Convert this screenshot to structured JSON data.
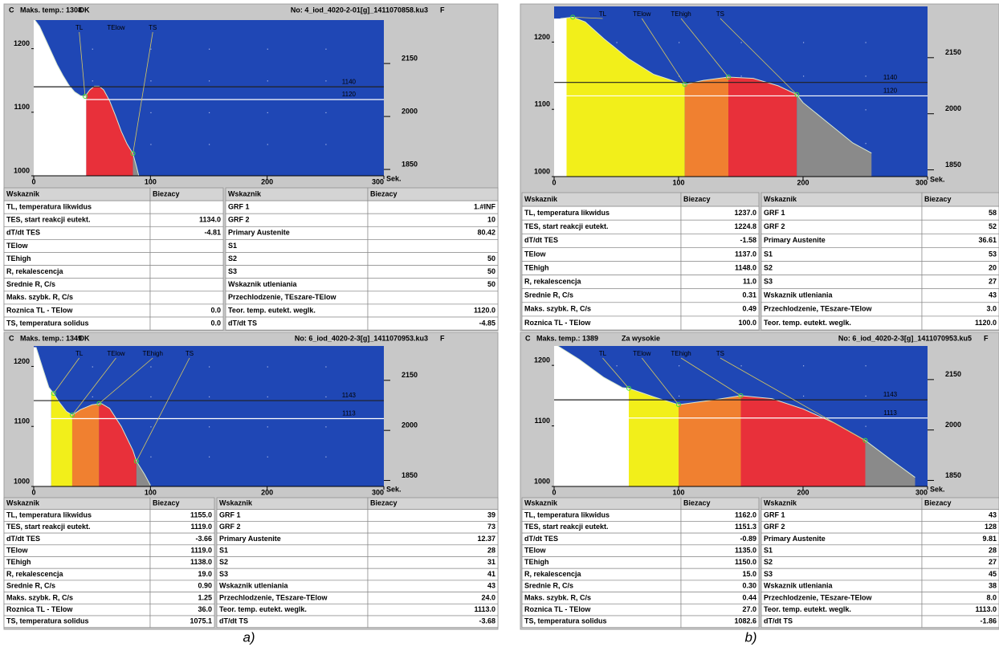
{
  "chart_data": [
    {
      "type": "line",
      "background": "#1f47b5",
      "color": "#d8e8d0",
      "x_unit": "Sek.",
      "x": [
        1,
        5,
        10,
        15,
        20,
        25,
        30,
        35,
        40,
        44,
        48,
        52,
        56,
        60,
        65,
        70,
        75,
        80,
        85,
        88,
        90
      ],
      "values": [
        1245,
        1235,
        1215,
        1195,
        1175,
        1158,
        1143,
        1132,
        1126,
        1125,
        1135,
        1141,
        1141,
        1135,
        1118,
        1095,
        1070,
        1050,
        1035,
        1015,
        1000
      ],
      "regions": [
        {
          "color": "#ffffff",
          "x": [
            0,
            45
          ]
        },
        {
          "color": "#e8303a",
          "x": [
            45,
            85
          ]
        },
        {
          "color": "#8a8a8a",
          "x": [
            85,
            90
          ]
        }
      ],
      "hlines": [
        1140,
        1120
      ],
      "annotations": [
        {
          "text": "TL",
          "x": 44,
          "y": 1125
        },
        {
          "text": "TElow",
          "x": null,
          "y": null
        },
        {
          "text": "TS",
          "x": 85,
          "y": 1035
        }
      ],
      "xlim": [
        0,
        300
      ],
      "xticks": [
        0,
        100,
        200,
        300
      ],
      "ylim": [
        1000,
        1245
      ],
      "yticks": [
        1000,
        1100,
        1200
      ],
      "y2lim": [
        1832,
        2273
      ],
      "y2ticks": [
        1850,
        2000,
        2150
      ],
      "grid": true
    },
    {
      "type": "line",
      "background": "#1f47b5",
      "color": "#d8e8d0",
      "x_unit": "Sek.",
      "x": [
        5,
        15,
        25,
        40,
        60,
        80,
        100,
        105,
        120,
        140,
        160,
        180,
        195,
        200,
        220,
        240,
        255
      ],
      "values": [
        1235,
        1237,
        1230,
        1205,
        1175,
        1152,
        1140,
        1137,
        1143,
        1148,
        1146,
        1135,
        1122,
        1110,
        1080,
        1050,
        1035
      ],
      "regions": [
        {
          "color": "#ffffff",
          "x": [
            0,
            10
          ]
        },
        {
          "color": "#f2ef1a",
          "x": [
            10,
            105
          ]
        },
        {
          "color": "#f08030",
          "x": [
            105,
            140
          ]
        },
        {
          "color": "#e8303a",
          "x": [
            140,
            195
          ]
        },
        {
          "color": "#8a8a8a",
          "x": [
            195,
            255
          ]
        }
      ],
      "hlines": [
        1140,
        1120
      ],
      "annotations": [
        {
          "text": "TL",
          "x": 15,
          "y": 1237
        },
        {
          "text": "TElow",
          "x": 105,
          "y": 1137
        },
        {
          "text": "TEhigh",
          "x": 140,
          "y": 1148
        },
        {
          "text": "TS",
          "x": 195,
          "y": 1122
        }
      ],
      "xlim": [
        0,
        300
      ],
      "xticks": [
        0,
        100,
        200,
        300
      ],
      "ylim": [
        1000,
        1253
      ],
      "yticks": [
        1000,
        1100,
        1200
      ],
      "y2lim": [
        1832,
        2287
      ],
      "y2ticks": [
        1850,
        2000,
        2150
      ],
      "grid": true
    },
    {
      "type": "line",
      "background": "#1f47b5",
      "color": "#d8e8d0",
      "x_unit": "Sek.",
      "x": [
        2,
        8,
        13,
        17,
        22,
        28,
        33,
        40,
        50,
        58,
        65,
        75,
        85,
        88,
        95,
        100
      ],
      "values": [
        1232,
        1195,
        1165,
        1155,
        1140,
        1125,
        1119,
        1128,
        1136,
        1138,
        1130,
        1100,
        1060,
        1042,
        1020,
        1002
      ],
      "regions": [
        {
          "color": "#ffffff",
          "x": [
            0,
            15
          ]
        },
        {
          "color": "#f2ef1a",
          "x": [
            15,
            33
          ]
        },
        {
          "color": "#f08030",
          "x": [
            33,
            56
          ]
        },
        {
          "color": "#e8303a",
          "x": [
            56,
            88
          ]
        },
        {
          "color": "#8a8a8a",
          "x": [
            88,
            100
          ]
        }
      ],
      "hlines": [
        1143,
        1113
      ],
      "annotations": [
        {
          "text": "TL",
          "x": 17,
          "y": 1155
        },
        {
          "text": "TElow",
          "x": 33,
          "y": 1119
        },
        {
          "text": "TEhigh",
          "x": 56,
          "y": 1138
        },
        {
          "text": "TS",
          "x": 88,
          "y": 1042
        }
      ],
      "xlim": [
        0,
        300
      ],
      "xticks": [
        0,
        100,
        200,
        300
      ],
      "ylim": [
        1000,
        1234
      ],
      "yticks": [
        1000,
        1100,
        1200
      ],
      "y2lim": [
        1832,
        2253
      ],
      "y2ticks": [
        1850,
        2000,
        2150
      ],
      "grid": true
    },
    {
      "type": "line",
      "background": "#1f47b5",
      "color": "#d8e8d0",
      "x_unit": "Sek.",
      "x": [
        3,
        20,
        40,
        55,
        60,
        80,
        100,
        125,
        150,
        175,
        200,
        225,
        250,
        270,
        290
      ],
      "values": [
        1232,
        1210,
        1180,
        1163,
        1162,
        1148,
        1135,
        1142,
        1150,
        1145,
        1128,
        1105,
        1076,
        1045,
        1015
      ],
      "regions": [
        {
          "color": "#ffffff",
          "x": [
            0,
            60
          ]
        },
        {
          "color": "#f2ef1a",
          "x": [
            60,
            100
          ]
        },
        {
          "color": "#f08030",
          "x": [
            100,
            150
          ]
        },
        {
          "color": "#e8303a",
          "x": [
            150,
            250
          ]
        },
        {
          "color": "#8a8a8a",
          "x": [
            250,
            290
          ]
        }
      ],
      "hlines": [
        1143,
        1113
      ],
      "annotations": [
        {
          "text": "TL",
          "x": 60,
          "y": 1162
        },
        {
          "text": "TElow",
          "x": 100,
          "y": 1135
        },
        {
          "text": "TEhigh",
          "x": 150,
          "y": 1150
        },
        {
          "text": "TS",
          "x": 250,
          "y": 1076
        }
      ],
      "xlim": [
        0,
        300
      ],
      "xticks": [
        0,
        100,
        200,
        300
      ],
      "ylim": [
        1000,
        1232
      ],
      "yticks": [
        1000,
        1100,
        1200
      ],
      "y2lim": [
        1832,
        2250
      ],
      "y2ticks": [
        1850,
        2000,
        2150
      ],
      "grid": true
    }
  ],
  "panels": [
    {
      "header": {
        "unit_left": "C",
        "max_temp": "Maks. temp.: 1308",
        "status": "OK",
        "file": "No: 4_iod_4020-2-01[g]_1411070858.ku3",
        "unit_right": "F"
      },
      "tables": [
        {
          "columns": [
            "Wskaznik",
            "Biezacy"
          ],
          "rows": [
            [
              "TL, temperatura likwidus",
              null
            ],
            [
              "TES, start reakcji eutekt.",
              "1134.0"
            ],
            [
              "dT/dt TES",
              "-4.81"
            ],
            [
              "TElow",
              null
            ],
            [
              "TEhigh",
              null
            ],
            [
              "R, rekalescencja",
              null
            ],
            [
              "Srednie R, C/s",
              null
            ],
            [
              "Maks. szybk. R, C/s",
              null
            ],
            [
              "Roznica TL - TElow",
              "0.0"
            ],
            [
              "TS, temperatura solidus",
              "0.0"
            ]
          ]
        },
        {
          "columns": [
            "Wskaznik",
            "Biezacy"
          ],
          "rows": [
            [
              "GRF 1",
              "1.#INF"
            ],
            [
              "GRF 2",
              "10"
            ],
            [
              "Primary Austenite",
              "80.42"
            ],
            [
              "S1",
              null
            ],
            [
              "S2",
              "50"
            ],
            [
              "S3",
              "50"
            ],
            [
              "Wskaznik utleniania",
              "50"
            ],
            [
              "Przechlodzenie, TEszare-TElow",
              null
            ],
            [
              "Teor. temp. eutekt. weglk.",
              "1120.0"
            ],
            [
              "dT/dt TS",
              "-4.85"
            ]
          ]
        }
      ]
    },
    {
      "tables": [
        {
          "columns": [
            "Wskaznik",
            "Biezacy"
          ],
          "rows": [
            [
              "TL, temperatura likwidus",
              "1237.0"
            ],
            [
              "TES, start reakcji eutekt.",
              "1224.8"
            ],
            [
              "dT/dt TES",
              "-1.58"
            ],
            [
              "TElow",
              "1137.0"
            ],
            [
              "TEhigh",
              "1148.0"
            ],
            [
              "R, rekalescencja",
              "11.0"
            ],
            [
              "Srednie R, C/s",
              "0.31"
            ],
            [
              "Maks. szybk. R, C/s",
              "0.49"
            ],
            [
              "Roznica TL - TElow",
              "100.0"
            ]
          ]
        },
        {
          "columns": [
            "Wskaznik",
            "Biezacy"
          ],
          "rows": [
            [
              "GRF 1",
              "58"
            ],
            [
              "GRF 2",
              "52"
            ],
            [
              "Primary Austenite",
              "36.61"
            ],
            [
              "S1",
              "53"
            ],
            [
              "S2",
              "20"
            ],
            [
              "S3",
              "27"
            ],
            [
              "Wskaznik utleniania",
              "43"
            ],
            [
              "Przechlodzenie, TEszare-TElow",
              "3.0"
            ],
            [
              "Teor. temp. eutekt. weglk.",
              "1120.0"
            ]
          ]
        }
      ]
    },
    {
      "header": {
        "unit_left": "C",
        "max_temp": "Maks. temp.: 1349",
        "status": "OK",
        "file": "No: 6_iod_4020-2-3[g]_1411070953.ku3",
        "unit_right": "F"
      },
      "tables": [
        {
          "columns": [
            "Wskaznik",
            "Biezacy"
          ],
          "rows": [
            [
              "TL, temperatura likwidus",
              "1155.0"
            ],
            [
              "TES, start reakcji eutekt.",
              "1119.0"
            ],
            [
              "dT/dt TES",
              "-3.66"
            ],
            [
              "TElow",
              "1119.0"
            ],
            [
              "TEhigh",
              "1138.0"
            ],
            [
              "R, rekalescencja",
              "19.0"
            ],
            [
              "Srednie R, C/s",
              "0.90"
            ],
            [
              "Maks. szybk. R, C/s",
              "1.25"
            ],
            [
              "Roznica TL - TElow",
              "36.0"
            ],
            [
              "TS, temperatura solidus",
              "1075.1"
            ]
          ]
        },
        {
          "columns": [
            "Wskaznik",
            "Biezacy"
          ],
          "rows": [
            [
              "GRF 1",
              "39"
            ],
            [
              "GRF 2",
              "73"
            ],
            [
              "Primary Austenite",
              "12.37"
            ],
            [
              "S1",
              "28"
            ],
            [
              "S2",
              "31"
            ],
            [
              "S3",
              "41"
            ],
            [
              "Wskaznik utleniania",
              "43"
            ],
            [
              "Przechlodzenie, TEszare-TElow",
              "24.0"
            ],
            [
              "Teor. temp. eutekt. weglk.",
              "1113.0"
            ],
            [
              "dT/dt TS",
              "-3.68"
            ]
          ]
        }
      ]
    },
    {
      "header": {
        "unit_left": "C",
        "max_temp": "Maks. temp.: 1389",
        "status": "Za wysokie",
        "file": "No: 6_iod_4020-2-3[g]_1411070953.ku5",
        "unit_right": "F"
      },
      "tables": [
        {
          "columns": [
            "Wskaznik",
            "Biezacy"
          ],
          "rows": [
            [
              "TL, temperatura likwidus",
              "1162.0"
            ],
            [
              "TES, start reakcji eutekt.",
              "1151.3"
            ],
            [
              "dT/dt TES",
              "-0.89"
            ],
            [
              "TElow",
              "1135.0"
            ],
            [
              "TEhigh",
              "1150.0"
            ],
            [
              "R, rekalescencja",
              "15.0"
            ],
            [
              "Srednie R, C/s",
              "0.30"
            ],
            [
              "Maks. szybk. R, C/s",
              "0.44"
            ],
            [
              "Roznica TL - TElow",
              "27.0"
            ],
            [
              "TS, temperatura solidus",
              "1082.6"
            ]
          ]
        },
        {
          "columns": [
            "Wskaznik",
            "Biezacy"
          ],
          "rows": [
            [
              "GRF 1",
              "43"
            ],
            [
              "GRF 2",
              "128"
            ],
            [
              "Primary Austenite",
              "9.81"
            ],
            [
              "S1",
              "28"
            ],
            [
              "S2",
              "27"
            ],
            [
              "S3",
              "45"
            ],
            [
              "Wskaznik utleniania",
              "38"
            ],
            [
              "Przechlodzenie, TEszare-TElow",
              "8.0"
            ],
            [
              "Teor. temp. eutekt. weglk.",
              "1113.0"
            ],
            [
              "dT/dt TS",
              "-1.86"
            ]
          ]
        }
      ]
    }
  ],
  "captions": [
    "a)",
    "b)"
  ]
}
